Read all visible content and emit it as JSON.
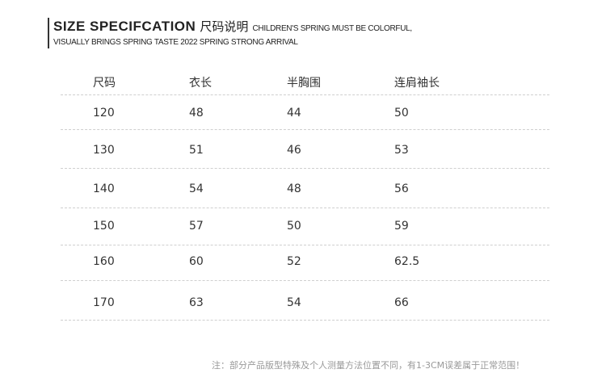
{
  "header": {
    "title": "SIZE SPECIFCATION",
    "title_cn": "尺码说明",
    "tagline_1": "CHILDREN'S SPRING MUST BE COLORFUL,",
    "tagline_2": "VISUALLY BRINGS SPRING TASTE 2022 SPRING STRONG ARRIVAL"
  },
  "table": {
    "columns": [
      "尺码",
      "衣长",
      "半胸围",
      "连肩袖长"
    ],
    "rows": [
      [
        "120",
        "48",
        "44",
        "50"
      ],
      [
        "130",
        "51",
        "46",
        "53"
      ],
      [
        "140",
        "54",
        "48",
        "56"
      ],
      [
        "150",
        "57",
        "50",
        "59"
      ],
      [
        "160",
        "60",
        "52",
        "62.5"
      ],
      [
        "170",
        "63",
        "54",
        "66"
      ]
    ]
  },
  "note": "注：部分产品版型特殊及个人测量方法位置不同，有1-3CM误差属于正常范围！"
}
